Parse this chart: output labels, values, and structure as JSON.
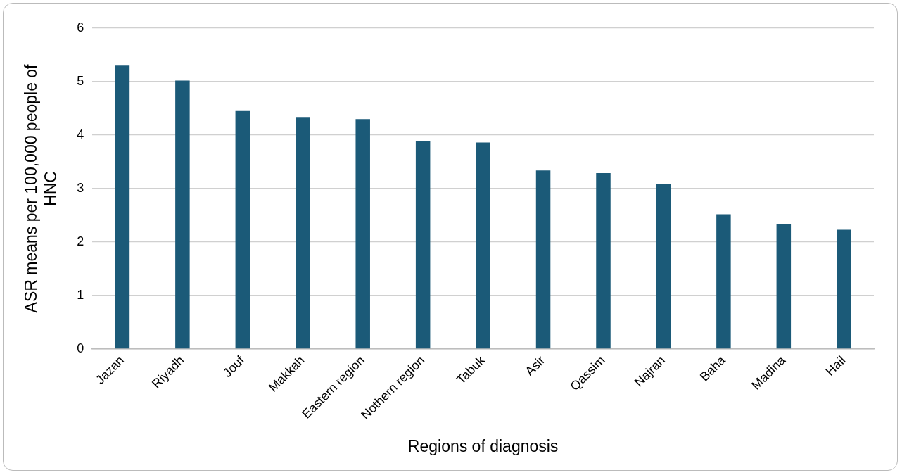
{
  "chart_data": {
    "type": "bar",
    "xlabel": "Regions of diagnosis",
    "ylabel": "ASR means per 100,000 people of HNC",
    "categories": [
      "Jazan",
      "Riyadh",
      "Jouf",
      "Makkah",
      "Eastern region",
      "Nothern region",
      "Tabuk",
      "Asir",
      "Qassim",
      "Najran",
      "Baha",
      "Madina",
      "Hail"
    ],
    "values": [
      5.3,
      5.02,
      4.45,
      4.34,
      4.3,
      3.89,
      3.86,
      3.34,
      3.29,
      3.08,
      2.52,
      2.33,
      2.23
    ],
    "color": "#1b5a78",
    "ylim": [
      0,
      6
    ],
    "yticks": [
      0,
      1,
      2,
      3,
      4,
      5,
      6
    ],
    "grid": "y",
    "legend": false
  }
}
